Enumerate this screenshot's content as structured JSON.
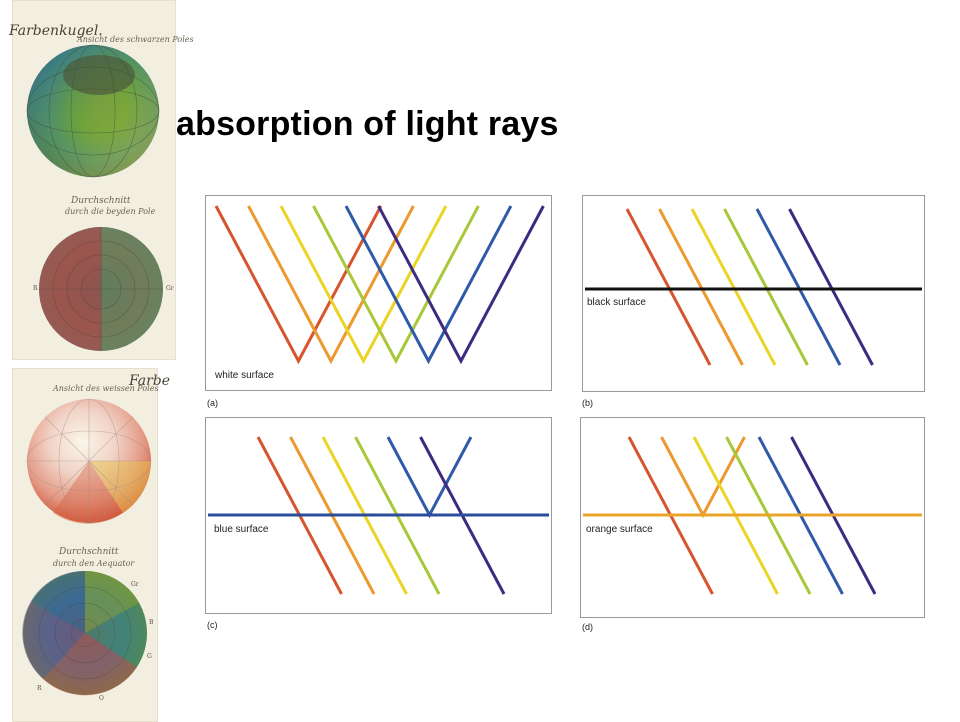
{
  "slide": {
    "title": "absorption of light rays"
  },
  "goethe_plates": {
    "top_plate": {
      "title": "Farbenkugel.",
      "sphere_1_caption": "Ansicht des schwarzen Poles",
      "sphere_2_caption_line1": "Durchschnitt",
      "sphere_2_caption_line2": "durch die beyden Pole",
      "sphere_2_left_letter": "R",
      "sphere_2_right_letter": "Gr"
    },
    "bottom_plate": {
      "title": "Farbe",
      "sphere_3_caption": "Ansicht des weissen Poles",
      "sphere_4_caption_line1": "Durchschnitt",
      "sphere_4_caption_line2": "durch den Aequator",
      "sphere_4_letters": [
        "Gr",
        "B",
        "G",
        "R",
        "O"
      ]
    }
  },
  "ray_colors": {
    "red": "#d8542e",
    "orange": "#ec9a2e",
    "yellow": "#ecd426",
    "yellowgreen": "#a8c83a",
    "blue": "#2e5aa8",
    "violet": "#3e2a80"
  },
  "surface_colors": {
    "black": "#111111",
    "blue": "#2a4c9a",
    "orange": "#eaa42a"
  },
  "panels": [
    {
      "letter": "(a)",
      "surface_label": "white surface",
      "surface": "white",
      "reflected": [
        "red",
        "orange",
        "yellow",
        "yellowgreen",
        "blue",
        "violet"
      ],
      "absorbed": []
    },
    {
      "letter": "(b)",
      "surface_label": "black surface",
      "surface": "black",
      "reflected": [],
      "absorbed": [
        "red",
        "orange",
        "yellow",
        "yellowgreen",
        "blue",
        "violet"
      ]
    },
    {
      "letter": "(c)",
      "surface_label": "blue surface",
      "surface": "blue",
      "reflected": [
        "blue"
      ],
      "absorbed": [
        "red",
        "orange",
        "yellow",
        "yellowgreen",
        "violet"
      ]
    },
    {
      "letter": "(d)",
      "surface_label": "orange surface",
      "surface": "orange",
      "reflected": [
        "orange"
      ],
      "absorbed": [
        "red",
        "yellow",
        "yellowgreen",
        "blue",
        "violet"
      ]
    }
  ]
}
